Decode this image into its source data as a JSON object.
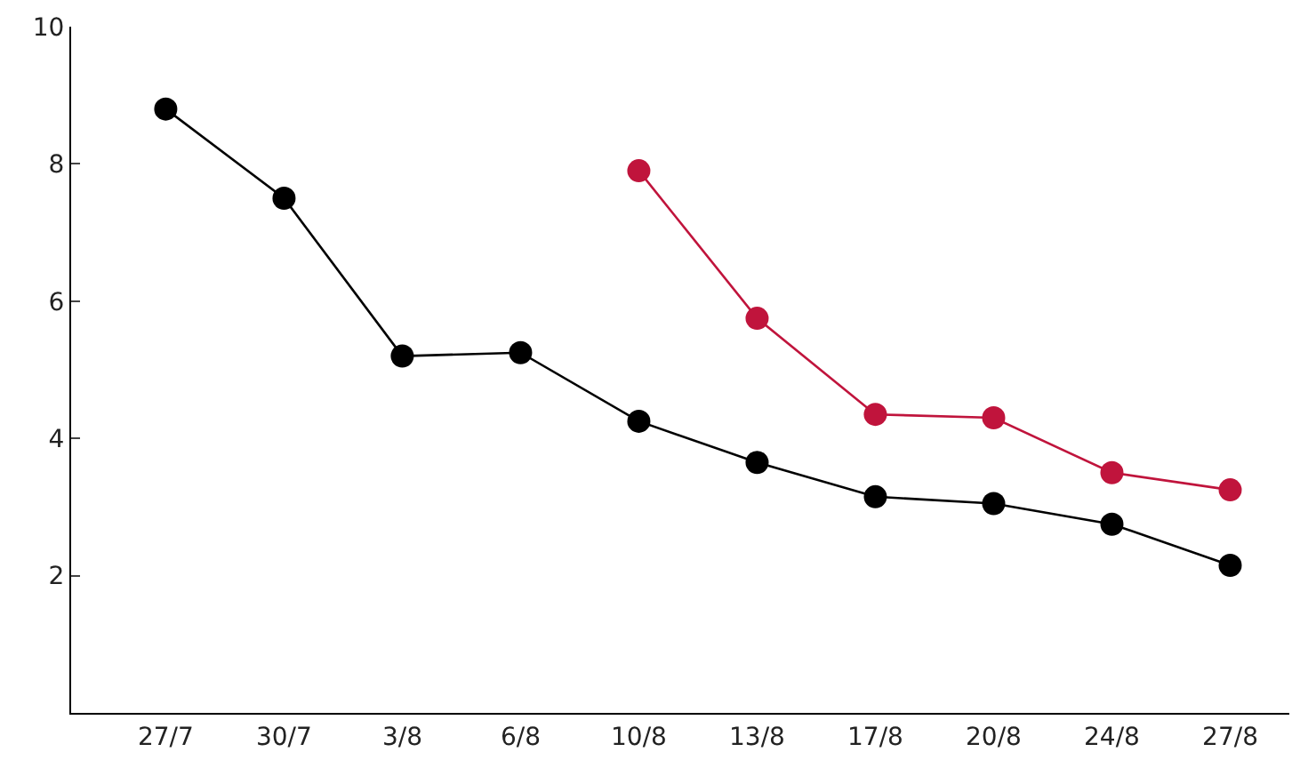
{
  "chart_data": {
    "type": "line",
    "categories": [
      "27/7",
      "30/7",
      "3/8",
      "6/8",
      "10/8",
      "13/8",
      "17/8",
      "20/8",
      "24/8",
      "27/8"
    ],
    "series": [
      {
        "color": "#000000",
        "values": [
          8.8,
          7.5,
          5.2,
          5.25,
          4.25,
          3.65,
          3.15,
          3.05,
          2.75,
          2.15
        ]
      },
      {
        "color": "#c0143c",
        "values": [
          null,
          null,
          null,
          null,
          7.9,
          5.75,
          4.35,
          4.3,
          3.5,
          3.25
        ]
      }
    ],
    "ylim": [
      0,
      10
    ],
    "yticks": [
      2,
      4,
      6,
      8,
      10
    ],
    "grid": false,
    "marker": "circle",
    "line_style": "solid"
  }
}
